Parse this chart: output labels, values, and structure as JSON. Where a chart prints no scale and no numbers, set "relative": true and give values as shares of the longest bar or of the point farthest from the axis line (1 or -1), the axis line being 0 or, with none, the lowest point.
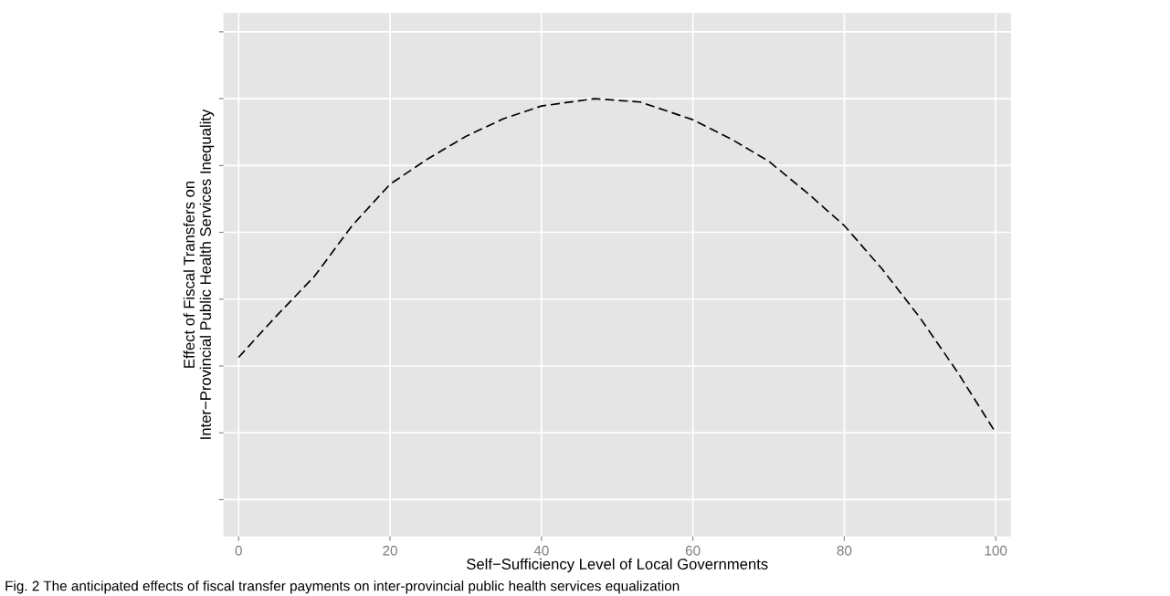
{
  "chart_data": {
    "type": "line",
    "relative": true,
    "xlabel": "Self−Sufficiency Level of Local Governments",
    "ylabel": "Effect of Fiscal Transfers on\nInter−Provincial Public Health Services Inequality",
    "x": [
      0,
      5,
      10,
      15,
      20,
      25,
      30,
      35,
      40,
      47,
      53,
      60,
      65,
      70,
      75,
      80,
      85,
      90,
      95,
      100
    ],
    "series": [
      {
        "color": "#000000",
        "values": [
          0.226,
          0.35,
          0.468,
          0.62,
          0.744,
          0.82,
          0.887,
          0.94,
          0.978,
          1,
          0.99,
          0.937,
          0.88,
          0.813,
          0.72,
          0.62,
          0.49,
          0.344,
          0.18,
          0
        ]
      }
    ],
    "xlim": [
      -2,
      102
    ],
    "xticks": [
      0,
      20,
      40,
      60,
      80,
      100
    ],
    "tick_labels": "x",
    "grid": true,
    "line_style": "dashed",
    "marker": "none",
    "legend": false,
    "annotations": [
      "Fig. 2 The anticipated effects of fiscal transfer payments on inter-provincial public health services equalization"
    ]
  }
}
